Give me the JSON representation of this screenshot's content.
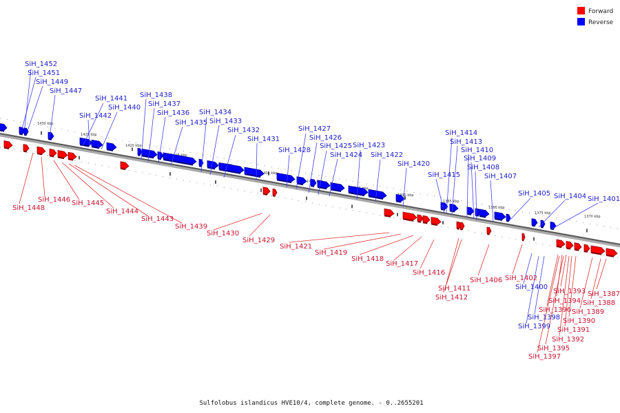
{
  "legend": {
    "forward": {
      "label": "Forward",
      "color": "#ff0000"
    },
    "reverse": {
      "label": "Reverse",
      "color": "#0000ff"
    }
  },
  "caption": "Sulfolobus islandicus HVE10/4, complete genome. - 0..2655201",
  "ticks": [
    "1370 kbp",
    "1375 kbp",
    "1380 kbp",
    "1385 kbp",
    "1390 kbp",
    "1395 kbp",
    "1400 kbp",
    "1405 kbp",
    "1410 kbp",
    "1415 kbp",
    "1420 kbp",
    "1425 kbp",
    "1430 kbp"
  ],
  "genes": {
    "reverse": [
      "SiH_1452",
      "SiH_1451",
      "SiH_1449",
      "SiH_1447",
      "SiH_1441",
      "SiH_1440",
      "SiH_1442",
      "SiH_1438",
      "SiH_1437",
      "SiH_1436",
      "SiH_1435",
      "SiH_1434",
      "SiH_1433",
      "SiH_1432",
      "SiH_1431",
      "SiH_1427",
      "SiH_1426",
      "SiH_1425",
      "SiH_1424",
      "SiH_1428",
      "SiH_1423",
      "SiH_1422",
      "SiH_1420",
      "SiH_1414",
      "SiH_1413",
      "SiH_1410",
      "SiH_1409",
      "SiH_1408",
      "SiH_1407",
      "SiH_1415",
      "SiH_1405",
      "SiH_1404",
      "SiH_1401",
      "SiH_1400",
      "SiH_1398",
      "SiH_1399"
    ],
    "forward": [
      "SiH_1448",
      "SiH_1446",
      "SiH_1445",
      "SiH_1444",
      "SiH_1443",
      "SiH_1439",
      "SiH_1430",
      "SiH_1429",
      "SiH_1421",
      "SiH_1419",
      "SiH_1418",
      "SiH_1417",
      "SiH_1416",
      "SiH_1411",
      "SiH_1412",
      "SiH_1406",
      "SiH_1402",
      "SiH_1393",
      "SiH_1394",
      "SiH_1396",
      "SiH_1390",
      "SiH_1391",
      "SiH_1392",
      "SiH_1395",
      "SiH_1397",
      "SiH_1387",
      "SiH_1388",
      "SiH_1389"
    ]
  }
}
